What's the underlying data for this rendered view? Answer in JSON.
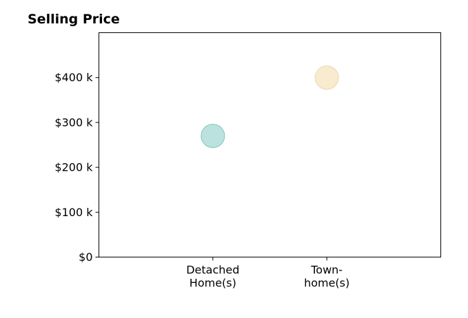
{
  "chart_data": {
    "type": "scatter",
    "title": "Selling Price",
    "categories": [
      "Detached\nHome(s)",
      "Town-\nhome(s)"
    ],
    "values": [
      270000,
      400000
    ],
    "y_tick_values": [
      0,
      100000,
      200000,
      300000,
      400000
    ],
    "y_tick_labels": [
      "$0",
      "$100 k",
      "$200 k",
      "$300 k",
      "$400 k"
    ],
    "ylim": [
      0,
      500000
    ],
    "grid": false,
    "legend": "none",
    "point_colors": [
      "#8fcfcb",
      "#f5deb0"
    ],
    "point_edge_colors": [
      "#7cc3bf",
      "#f0d6a4"
    ]
  }
}
